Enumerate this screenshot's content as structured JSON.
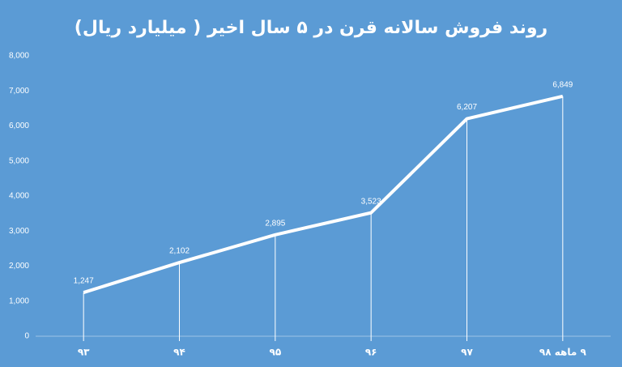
{
  "chart_data": {
    "type": "line",
    "title": "روند فروش سالانه   قرن در ۵ سال اخیر ( میلیارد ریال)",
    "categories": [
      "۹۳",
      "۹۴",
      "۹۵",
      "۹۶",
      "۹۷",
      "۹ ماهه ۹۸"
    ],
    "values": [
      1247,
      2102,
      2895,
      3523,
      6207,
      6849
    ],
    "value_labels": [
      "1,247",
      "2,102",
      "2,895",
      "3,523",
      "6,207",
      "6,849"
    ],
    "color": "#ffffff",
    "ylim": [
      0,
      8000
    ],
    "yticks": [
      0,
      {
        "value": 1000,
        "label": "1,000"
      },
      {
        "value": 2000,
        "label": "2,000"
      },
      {
        "value": 3000,
        "label": "3,000"
      },
      {
        "value": 4000,
        "label": "4,000"
      },
      {
        "value": 5000,
        "label": "5,000"
      },
      {
        "value": 6000,
        "label": "6,000"
      },
      {
        "value": 7000,
        "label": "7,000"
      },
      {
        "value": 8000,
        "label": "8,000"
      }
    ],
    "grid": false
  }
}
